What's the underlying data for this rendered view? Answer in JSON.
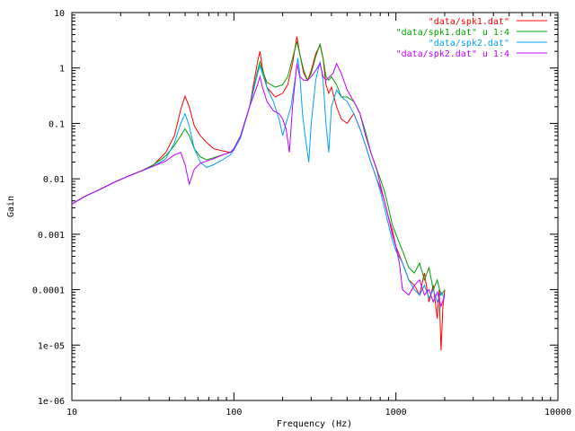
{
  "chart_data": {
    "type": "line",
    "title": "",
    "xlabel": "Frequency (Hz)",
    "ylabel": "Gain",
    "xscale": "log",
    "yscale": "log",
    "xlim": [
      10,
      10000
    ],
    "ylim": [
      1e-06,
      10
    ],
    "grid": false,
    "legend_position": "top-right",
    "x_ticks": [
      10,
      100,
      1000,
      10000
    ],
    "x_tick_labels": [
      "10",
      "100",
      "1000",
      "10000"
    ],
    "y_ticks": [
      1e-06,
      1e-05,
      0.0001,
      0.001,
      0.01,
      0.1,
      1,
      10
    ],
    "y_tick_labels": [
      "1e-06",
      "1e-05",
      "0.0001",
      "0.001",
      "0.01",
      "0.1",
      "1",
      "10"
    ],
    "series": [
      {
        "name": "\"data/spk1.dat\"",
        "color": "#ff0000",
        "points": [
          [
            10,
            0.0035
          ],
          [
            12,
            0.0048
          ],
          [
            15,
            0.0065
          ],
          [
            18,
            0.0085
          ],
          [
            22,
            0.011
          ],
          [
            27,
            0.014
          ],
          [
            32,
            0.018
          ],
          [
            38,
            0.03
          ],
          [
            43,
            0.06
          ],
          [
            47,
            0.18
          ],
          [
            50,
            0.31
          ],
          [
            53,
            0.2
          ],
          [
            57,
            0.09
          ],
          [
            62,
            0.06
          ],
          [
            68,
            0.045
          ],
          [
            75,
            0.035
          ],
          [
            85,
            0.032
          ],
          [
            95,
            0.03
          ],
          [
            100,
            0.033
          ],
          [
            110,
            0.06
          ],
          [
            125,
            0.2
          ],
          [
            140,
            1.3
          ],
          [
            145,
            2.0
          ],
          [
            150,
            1.0
          ],
          [
            160,
            0.45
          ],
          [
            180,
            0.3
          ],
          [
            200,
            0.35
          ],
          [
            215,
            0.5
          ],
          [
            230,
            1.2
          ],
          [
            245,
            3.7
          ],
          [
            255,
            1.8
          ],
          [
            270,
            0.8
          ],
          [
            285,
            0.6
          ],
          [
            300,
            0.9
          ],
          [
            320,
            1.8
          ],
          [
            340,
            2.6
          ],
          [
            355,
            1.5
          ],
          [
            370,
            0.5
          ],
          [
            385,
            0.35
          ],
          [
            400,
            0.45
          ],
          [
            430,
            0.2
          ],
          [
            460,
            0.12
          ],
          [
            500,
            0.1
          ],
          [
            550,
            0.15
          ],
          [
            600,
            0.08
          ],
          [
            650,
            0.04
          ],
          [
            700,
            0.02
          ],
          [
            760,
            0.01
          ],
          [
            800,
            0.007
          ],
          [
            850,
            0.004
          ],
          [
            900,
            0.002
          ],
          [
            950,
            0.0012
          ],
          [
            1000,
            0.0006
          ],
          [
            1100,
            0.0003
          ],
          [
            1200,
            0.00015
          ],
          [
            1300,
            0.00012
          ],
          [
            1400,
            8e-05
          ],
          [
            1500,
            0.0002
          ],
          [
            1600,
            6e-05
          ],
          [
            1700,
            0.00012
          ],
          [
            1800,
            3e-05
          ],
          [
            1850,
            0.0001
          ],
          [
            1900,
            8e-06
          ],
          [
            1950,
            5e-05
          ],
          [
            2000,
            0.0001
          ]
        ]
      },
      {
        "name": "\"data/spk1.dat\" u 1:4",
        "color": "#00a000",
        "points": [
          [
            10,
            0.0035
          ],
          [
            12,
            0.0048
          ],
          [
            15,
            0.0065
          ],
          [
            18,
            0.0085
          ],
          [
            22,
            0.011
          ],
          [
            27,
            0.014
          ],
          [
            32,
            0.018
          ],
          [
            38,
            0.026
          ],
          [
            43,
            0.04
          ],
          [
            47,
            0.06
          ],
          [
            50,
            0.08
          ],
          [
            53,
            0.06
          ],
          [
            57,
            0.035
          ],
          [
            62,
            0.025
          ],
          [
            68,
            0.022
          ],
          [
            75,
            0.024
          ],
          [
            85,
            0.027
          ],
          [
            95,
            0.03
          ],
          [
            100,
            0.035
          ],
          [
            110,
            0.06
          ],
          [
            125,
            0.2
          ],
          [
            140,
            0.9
          ],
          [
            145,
            1.3
          ],
          [
            150,
            0.9
          ],
          [
            160,
            0.55
          ],
          [
            180,
            0.45
          ],
          [
            200,
            0.5
          ],
          [
            215,
            0.7
          ],
          [
            230,
            1.5
          ],
          [
            245,
            3.0
          ],
          [
            255,
            1.8
          ],
          [
            270,
            0.9
          ],
          [
            285,
            0.6
          ],
          [
            300,
            0.8
          ],
          [
            320,
            1.6
          ],
          [
            340,
            2.7
          ],
          [
            355,
            1.5
          ],
          [
            370,
            0.7
          ],
          [
            385,
            0.6
          ],
          [
            400,
            0.7
          ],
          [
            430,
            0.5
          ],
          [
            460,
            0.3
          ],
          [
            500,
            0.3
          ],
          [
            550,
            0.25
          ],
          [
            600,
            0.15
          ],
          [
            650,
            0.07
          ],
          [
            700,
            0.03
          ],
          [
            760,
            0.015
          ],
          [
            800,
            0.01
          ],
          [
            850,
            0.006
          ],
          [
            900,
            0.003
          ],
          [
            950,
            0.0015
          ],
          [
            1000,
            0.001
          ],
          [
            1100,
            0.0005
          ],
          [
            1200,
            0.00025
          ],
          [
            1300,
            0.0002
          ],
          [
            1400,
            0.0003
          ],
          [
            1500,
            0.00015
          ],
          [
            1600,
            0.00025
          ],
          [
            1700,
            0.0001
          ],
          [
            1800,
            0.00015
          ],
          [
            1900,
            8e-05
          ],
          [
            2000,
            0.0001
          ]
        ]
      },
      {
        "name": "\"data/spk2.dat\"",
        "color": "#00a0ff",
        "points": [
          [
            10,
            0.0035
          ],
          [
            12,
            0.0048
          ],
          [
            15,
            0.0065
          ],
          [
            18,
            0.0085
          ],
          [
            22,
            0.011
          ],
          [
            27,
            0.014
          ],
          [
            32,
            0.017
          ],
          [
            38,
            0.023
          ],
          [
            43,
            0.045
          ],
          [
            47,
            0.1
          ],
          [
            50,
            0.15
          ],
          [
            53,
            0.09
          ],
          [
            57,
            0.035
          ],
          [
            62,
            0.02
          ],
          [
            68,
            0.016
          ],
          [
            75,
            0.018
          ],
          [
            85,
            0.022
          ],
          [
            95,
            0.027
          ],
          [
            100,
            0.033
          ],
          [
            110,
            0.055
          ],
          [
            125,
            0.2
          ],
          [
            140,
            0.8
          ],
          [
            145,
            1.1
          ],
          [
            150,
            0.8
          ],
          [
            160,
            0.45
          ],
          [
            175,
            0.25
          ],
          [
            190,
            0.12
          ],
          [
            200,
            0.06
          ],
          [
            210,
            0.1
          ],
          [
            225,
            0.2
          ],
          [
            240,
            0.7
          ],
          [
            248,
            1.5
          ],
          [
            255,
            0.8
          ],
          [
            265,
            0.15
          ],
          [
            275,
            0.06
          ],
          [
            290,
            0.02
          ],
          [
            300,
            0.1
          ],
          [
            320,
            0.6
          ],
          [
            340,
            1.3
          ],
          [
            355,
            0.6
          ],
          [
            370,
            0.1
          ],
          [
            385,
            0.03
          ],
          [
            400,
            0.2
          ],
          [
            430,
            0.4
          ],
          [
            460,
            0.3
          ],
          [
            500,
            0.25
          ],
          [
            550,
            0.15
          ],
          [
            600,
            0.08
          ],
          [
            650,
            0.04
          ],
          [
            700,
            0.02
          ],
          [
            760,
            0.01
          ],
          [
            800,
            0.006
          ],
          [
            850,
            0.003
          ],
          [
            900,
            0.0015
          ],
          [
            950,
            0.0008
          ],
          [
            1000,
            0.0005
          ],
          [
            1100,
            0.0003
          ],
          [
            1200,
            0.00015
          ],
          [
            1300,
            0.0001
          ],
          [
            1400,
            8e-05
          ],
          [
            1500,
            0.00012
          ],
          [
            1600,
            7e-05
          ],
          [
            1700,
            0.0001
          ],
          [
            1800,
            6e-05
          ],
          [
            1900,
            9e-05
          ],
          [
            2000,
            7e-05
          ]
        ]
      },
      {
        "name": "\"data/spk2.dat\" u 1:4",
        "color": "#c000ff",
        "points": [
          [
            10,
            0.0035
          ],
          [
            12,
            0.0048
          ],
          [
            15,
            0.0065
          ],
          [
            18,
            0.0085
          ],
          [
            22,
            0.011
          ],
          [
            27,
            0.014
          ],
          [
            32,
            0.017
          ],
          [
            38,
            0.021
          ],
          [
            43,
            0.027
          ],
          [
            47,
            0.03
          ],
          [
            50,
            0.018
          ],
          [
            53,
            0.008
          ],
          [
            57,
            0.015
          ],
          [
            62,
            0.019
          ],
          [
            68,
            0.021
          ],
          [
            75,
            0.023
          ],
          [
            85,
            0.027
          ],
          [
            95,
            0.03
          ],
          [
            100,
            0.035
          ],
          [
            110,
            0.06
          ],
          [
            125,
            0.2
          ],
          [
            140,
            0.5
          ],
          [
            145,
            0.7
          ],
          [
            150,
            0.45
          ],
          [
            160,
            0.25
          ],
          [
            175,
            0.17
          ],
          [
            190,
            0.15
          ],
          [
            200,
            0.12
          ],
          [
            210,
            0.08
          ],
          [
            220,
            0.03
          ],
          [
            230,
            0.2
          ],
          [
            245,
            1.2
          ],
          [
            255,
            0.7
          ],
          [
            270,
            0.6
          ],
          [
            285,
            0.6
          ],
          [
            300,
            0.7
          ],
          [
            320,
            0.9
          ],
          [
            340,
            1.2
          ],
          [
            355,
            0.7
          ],
          [
            370,
            0.6
          ],
          [
            390,
            0.7
          ],
          [
            410,
            0.8
          ],
          [
            430,
            1.2
          ],
          [
            460,
            0.8
          ],
          [
            500,
            0.4
          ],
          [
            550,
            0.25
          ],
          [
            600,
            0.15
          ],
          [
            650,
            0.06
          ],
          [
            700,
            0.03
          ],
          [
            760,
            0.015
          ],
          [
            800,
            0.008
          ],
          [
            850,
            0.004
          ],
          [
            900,
            0.002
          ],
          [
            950,
            0.001
          ],
          [
            1000,
            0.0006
          ],
          [
            1050,
            0.0003
          ],
          [
            1100,
            0.0001
          ],
          [
            1200,
            8e-05
          ],
          [
            1300,
            0.00012
          ],
          [
            1400,
            0.00015
          ],
          [
            1500,
            8e-05
          ],
          [
            1600,
            0.0001
          ],
          [
            1700,
            6e-05
          ],
          [
            1800,
            9e-05
          ],
          [
            1900,
            5e-05
          ],
          [
            2000,
            8e-05
          ]
        ]
      }
    ]
  }
}
